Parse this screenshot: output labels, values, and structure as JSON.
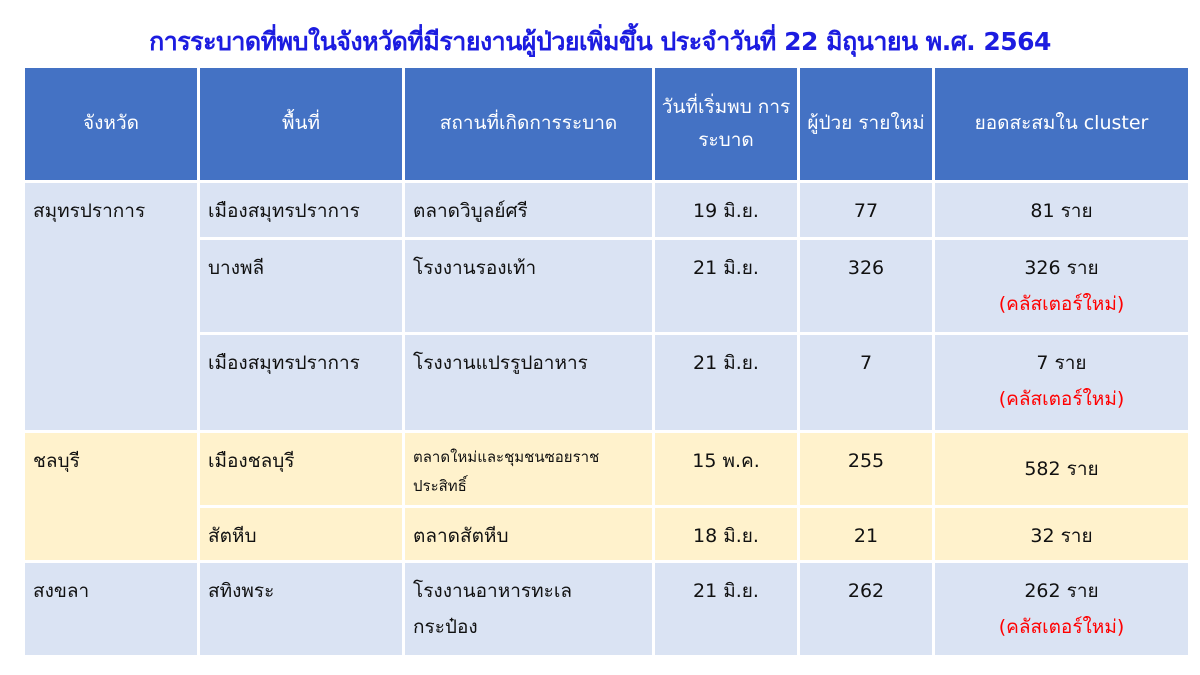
{
  "title": "การระบาดที่พบในจังหวัดที่มีรายงานผู้ป่วยเพิ่มขึ้น ประจำวันที่ 22 มิถุนายน พ.ศ. 2564",
  "headers": [
    "จังหวัด",
    "พื้นที่",
    "สถานที่เกิดการระบาด",
    "วันที่เริ่มพบ การระบาด",
    "ผู้ป่วย รายใหม่",
    "ยอดสะสมใน cluster"
  ],
  "colors": {
    "header": "#4472c4",
    "row_blue": "#dae3f3",
    "row_yellow": "#fff2cc",
    "title": "#1c1ce0",
    "new_cluster": "#ff0000"
  },
  "provinces": [
    {
      "name": "สมุทรปราการ",
      "rows": [
        {
          "area": "เมืองสมุทรปราการ",
          "place": "ตลาดวิบูลย์ศรี",
          "date": "19 มิ.ย.",
          "new": "77",
          "total": "81 ราย",
          "note": ""
        },
        {
          "area": "บางพลี",
          "place": "โรงงานรองเท้า",
          "date": "21 มิ.ย.",
          "new": "326",
          "total": "326 ราย",
          "note": "(คลัสเตอร์ใหม่)"
        },
        {
          "area": "เมืองสมุทรปราการ",
          "place": "โรงงานแปรรูปอาหาร",
          "date": "21 มิ.ย.",
          "new": "7",
          "total": "7 ราย",
          "note": "(คลัสเตอร์ใหม่)"
        }
      ]
    },
    {
      "name": "ชลบุรี",
      "rows": [
        {
          "area": "เมืองชลบุรี",
          "place": "ตลาดใหม่และชุมชนซอยราชประสิทธิ์",
          "date": "15 พ.ค.",
          "new": "255",
          "total": "582 ราย",
          "note": ""
        },
        {
          "area": "สัตหีบ",
          "place": "ตลาดสัตหีบ",
          "date": "18 มิ.ย.",
          "new": "21",
          "total": "32 ราย",
          "note": ""
        }
      ]
    },
    {
      "name": "สงขลา",
      "rows": [
        {
          "area": "สทิงพระ",
          "place": "โรงงานอาหารทะเลกระป๋อง",
          "date": "21 มิ.ย.",
          "new": "262",
          "total": "262 ราย",
          "note": "(คลัสเตอร์ใหม่)"
        }
      ]
    }
  ]
}
